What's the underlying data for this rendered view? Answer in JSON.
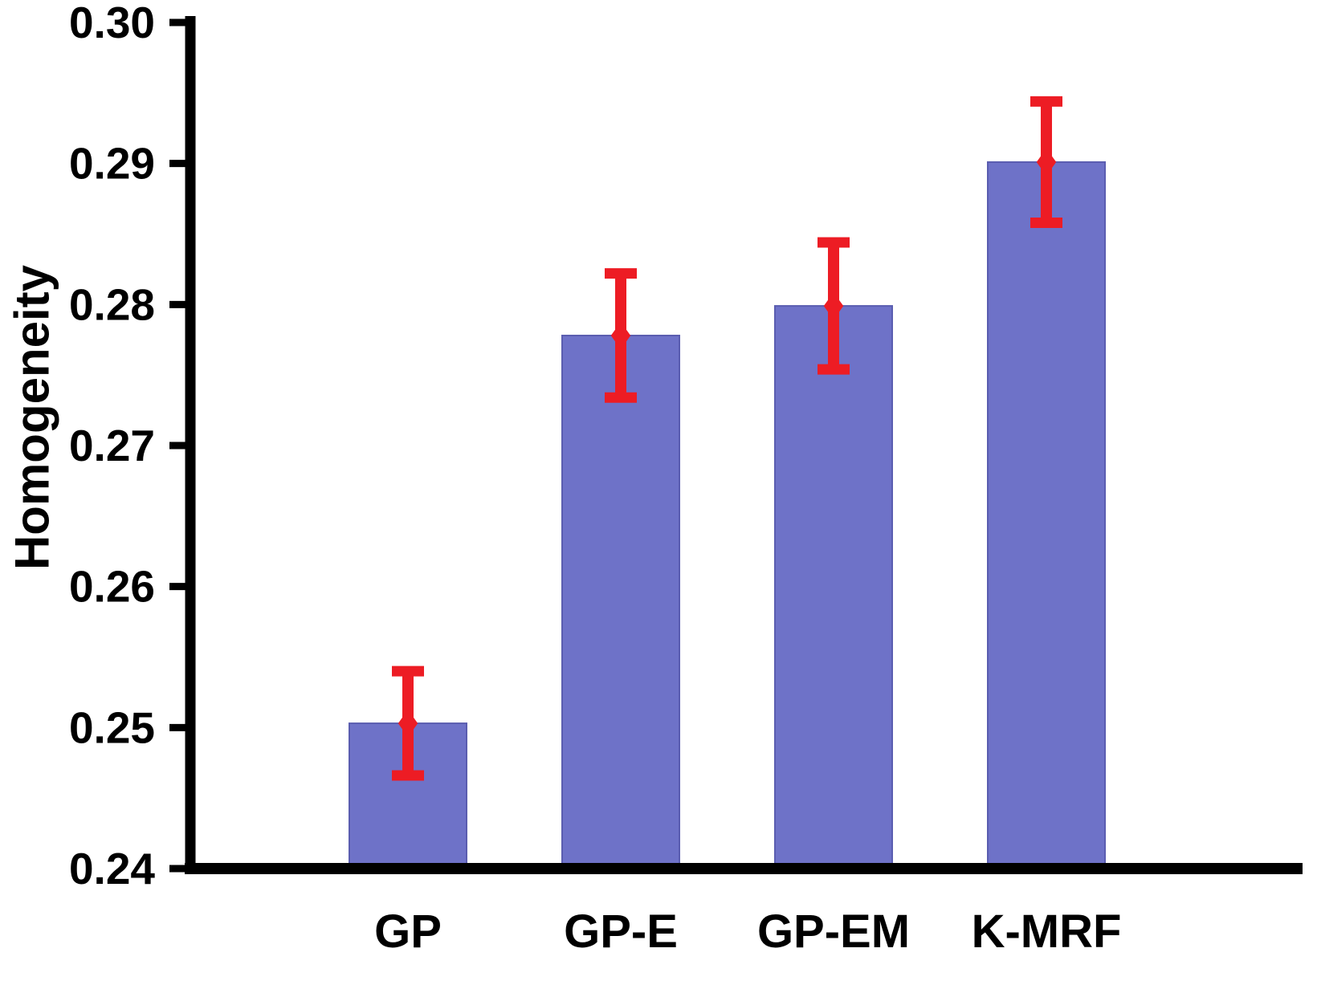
{
  "chart_data": {
    "type": "bar",
    "categories": [
      "GP",
      "GP-E",
      "GP-EM",
      "K-MRF"
    ],
    "values": [
      0.2503,
      0.2778,
      0.2799,
      0.2901
    ],
    "errors": [
      0.0037,
      0.0044,
      0.0045,
      0.0043
    ],
    "title": "",
    "xlabel": "",
    "ylabel": "Homogeneity",
    "ylim": [
      0.24,
      0.3
    ],
    "yticks": [
      0.24,
      0.25,
      0.26,
      0.27,
      0.28,
      0.29,
      0.3
    ],
    "tick_format_decimals": 2,
    "grid": false,
    "legend": null,
    "bar_color": "#6E72C8",
    "bar_edge_color": "#5A5DB0",
    "error_color": "#ED1C24",
    "axis_color": "#000000",
    "marker": "diamond"
  }
}
